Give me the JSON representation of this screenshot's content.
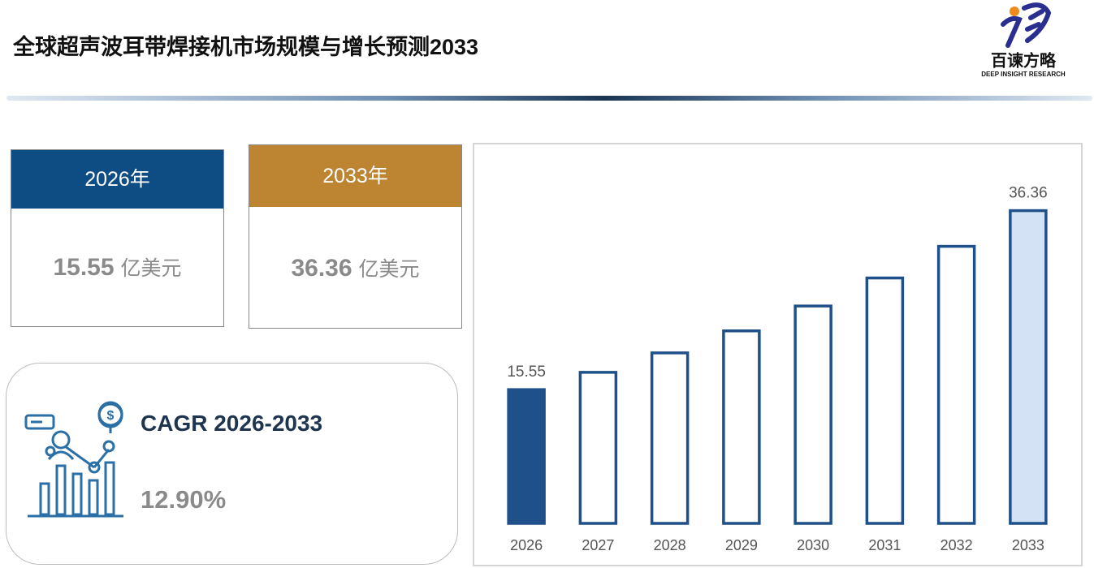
{
  "header": {
    "title": "全球超声波耳带焊接机市场规模与增长预测2033",
    "logo_name": "百谏方略",
    "logo_tagline": "DEEP INSIGHT RESEARCH"
  },
  "cards": [
    {
      "year": "2026年",
      "value": "15.55",
      "unit": "亿美元",
      "color": "#0e4c84"
    },
    {
      "year": "2033年",
      "value": "36.36",
      "unit": "亿美元",
      "color": "#bd8431"
    }
  ],
  "cagr": {
    "label": "CAGR 2026-2033",
    "value": "12.90%"
  },
  "chart_data": {
    "type": "bar",
    "categories": [
      "2026",
      "2027",
      "2028",
      "2029",
      "2030",
      "2031",
      "2032",
      "2033"
    ],
    "values": [
      15.55,
      17.56,
      19.82,
      22.38,
      25.27,
      28.53,
      32.21,
      36.36
    ],
    "value_labels": [
      "15.55",
      null,
      null,
      null,
      null,
      null,
      null,
      "36.36"
    ],
    "fills": [
      "#1f5089",
      "#ffffff",
      "#ffffff",
      "#ffffff",
      "#ffffff",
      "#ffffff",
      "#ffffff",
      "#d3e2f4"
    ],
    "stroke": "#1f5089",
    "ylim": [
      0,
      40
    ]
  }
}
